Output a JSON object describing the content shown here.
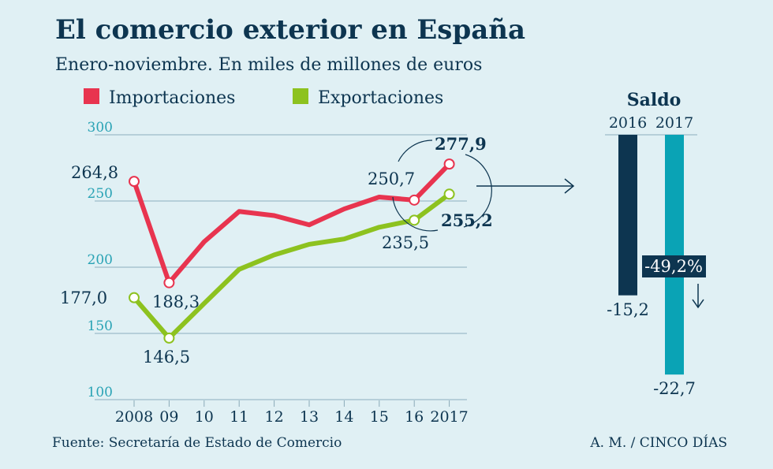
{
  "title": "El comercio exterior en España",
  "subtitle": "Enero-noviembre. En miles de millones de euros",
  "source": "Fuente: Secretaría de Estado de Comercio",
  "credit": "A. M. / CINCO DÍAS",
  "colors": {
    "background": "#e0f0f4",
    "imports": "#e8344f",
    "exports": "#8dc21f",
    "dark": "#0d3550",
    "teal": "#0aa3b5"
  },
  "chart_data": [
    {
      "type": "line",
      "legend_position": "top",
      "grid": true,
      "ylim": [
        100,
        300
      ],
      "yticks": [
        "100",
        "150",
        "200",
        "250",
        "300"
      ],
      "categories": [
        "2008",
        "09",
        "10",
        "11",
        "12",
        "13",
        "14",
        "15",
        "16",
        "2017"
      ],
      "series": [
        {
          "name": "Importaciones",
          "values": [
            264.8,
            188.3,
            219.2,
            242.1,
            239.0,
            232.0,
            244.0,
            253.0,
            250.7,
            277.9
          ]
        },
        {
          "name": "Exportaciones",
          "values": [
            177.0,
            146.5,
            172.6,
            198.4,
            209.3,
            217.3,
            221.3,
            230.2,
            235.5,
            255.2
          ]
        }
      ],
      "labels": {
        "imp_2008": "264,8",
        "imp_2009": "188,3",
        "imp_2016": "250,7",
        "imp_2017": "277,9",
        "exp_2008": "177,0",
        "exp_2009": "146,5",
        "exp_2016": "235,5",
        "exp_2017": "255,2"
      }
    },
    {
      "type": "bar",
      "title": "Saldo",
      "categories": [
        "2016",
        "2017"
      ],
      "values": [
        -15.2,
        -22.7
      ],
      "value_labels": [
        "-15,2",
        "-22,7"
      ],
      "annotation": "-49,2%"
    }
  ]
}
